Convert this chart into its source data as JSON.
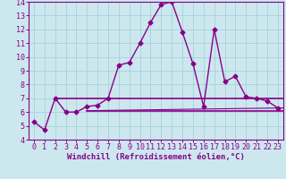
{
  "xlabel": "Windchill (Refroidissement éolien,°C)",
  "bg_color": "#cce8ee",
  "grid_color": "#aad4dd",
  "line_color": "#880088",
  "xlim": [
    -0.5,
    23.5
  ],
  "ylim": [
    4,
    14
  ],
  "xticks": [
    0,
    1,
    2,
    3,
    4,
    5,
    6,
    7,
    8,
    9,
    10,
    11,
    12,
    13,
    14,
    15,
    16,
    17,
    18,
    19,
    20,
    21,
    22,
    23
  ],
  "yticks": [
    4,
    5,
    6,
    7,
    8,
    9,
    10,
    11,
    12,
    13,
    14
  ],
  "curve_x": [
    0,
    1,
    2,
    3,
    4,
    5,
    6,
    7,
    8,
    9,
    10,
    11,
    12,
    13,
    14,
    15,
    16,
    17,
    18,
    19,
    20,
    21,
    22,
    23
  ],
  "curve_y": [
    5.3,
    4.7,
    7.0,
    6.0,
    6.0,
    6.4,
    6.5,
    7.0,
    9.4,
    9.6,
    11.0,
    12.5,
    13.8,
    14.0,
    11.8,
    9.5,
    6.4,
    12.0,
    8.2,
    8.6,
    7.1,
    7.0,
    6.8,
    6.3
  ],
  "hline1_y": 7.0,
  "hline1_x0": 2.0,
  "hline1_x1": 23.5,
  "hline2_y": 6.1,
  "hline2_x0": 5.0,
  "hline2_x1": 23.5,
  "sline_x0": 5.0,
  "sline_x1": 23.5,
  "sline_y0": 6.1,
  "sline_y1": 6.3,
  "font_family": "monospace",
  "fontsize_ticks": 6,
  "fontsize_xlabel": 6.5
}
